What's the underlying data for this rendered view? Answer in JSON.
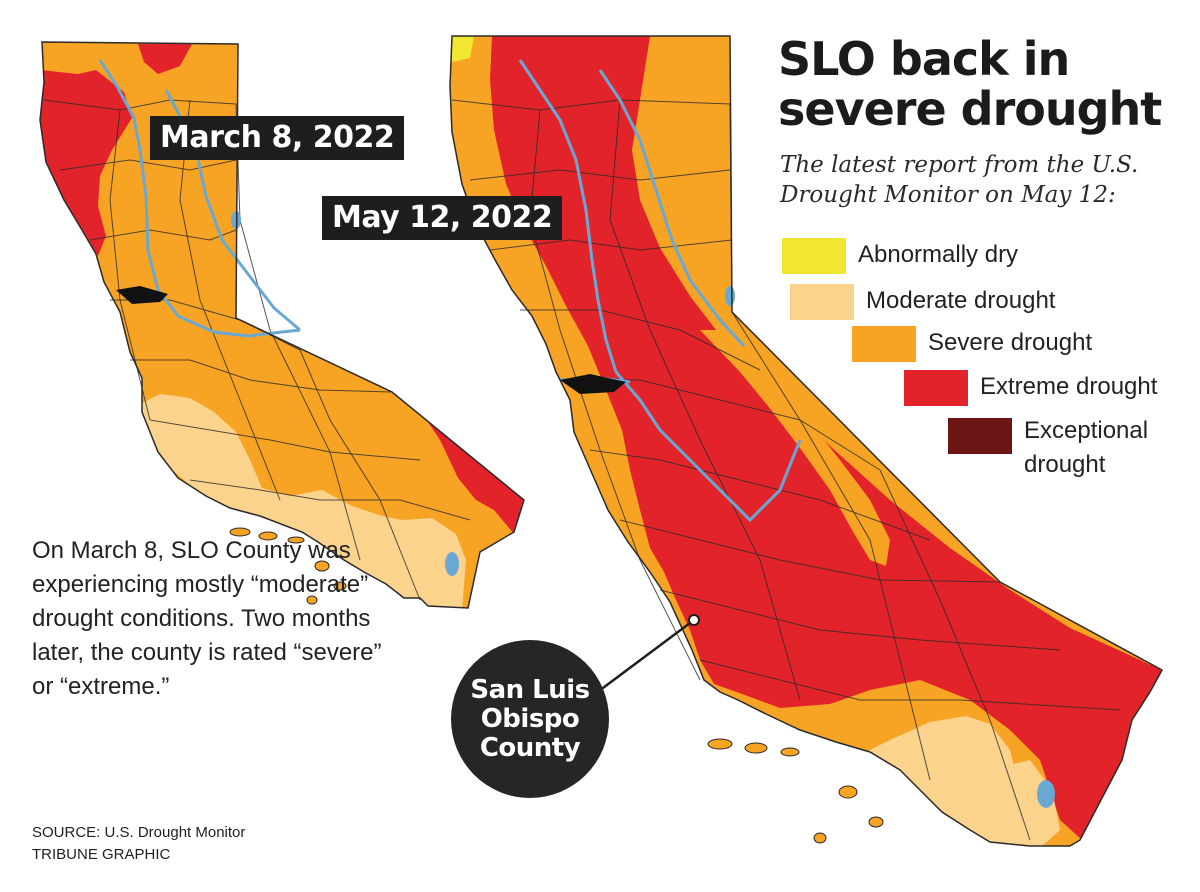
{
  "headline": "SLO back in severe drought",
  "subhead": "The latest report from the U.S. Drought Monitor on May 12:",
  "maps": [
    {
      "date_label": "March 8, 2022"
    },
    {
      "date_label": "May 12, 2022"
    }
  ],
  "legend": [
    {
      "label": "Abnormally dry",
      "color": "#f2e630"
    },
    {
      "label": "Moderate drought",
      "color": "#fbd38c"
    },
    {
      "label": "Severe drought",
      "color": "#f7a425"
    },
    {
      "label": "Extreme drought",
      "color": "#e3232a"
    },
    {
      "label": "Exceptional drought",
      "color": "#6b1515"
    }
  ],
  "colors": {
    "water": "#6aa8d4",
    "county_lines": "#2a2a2a",
    "label_background": "#1e1e1e"
  },
  "callout": "San Luis Obispo County",
  "note": "On March 8, SLO County was experiencing mostly “moderate” drought conditions. Two months later, the county is rated “severe” or “extreme.”",
  "source": "SOURCE: U.S. Drought Monitor",
  "credit": "TRIBUNE GRAPHIC"
}
